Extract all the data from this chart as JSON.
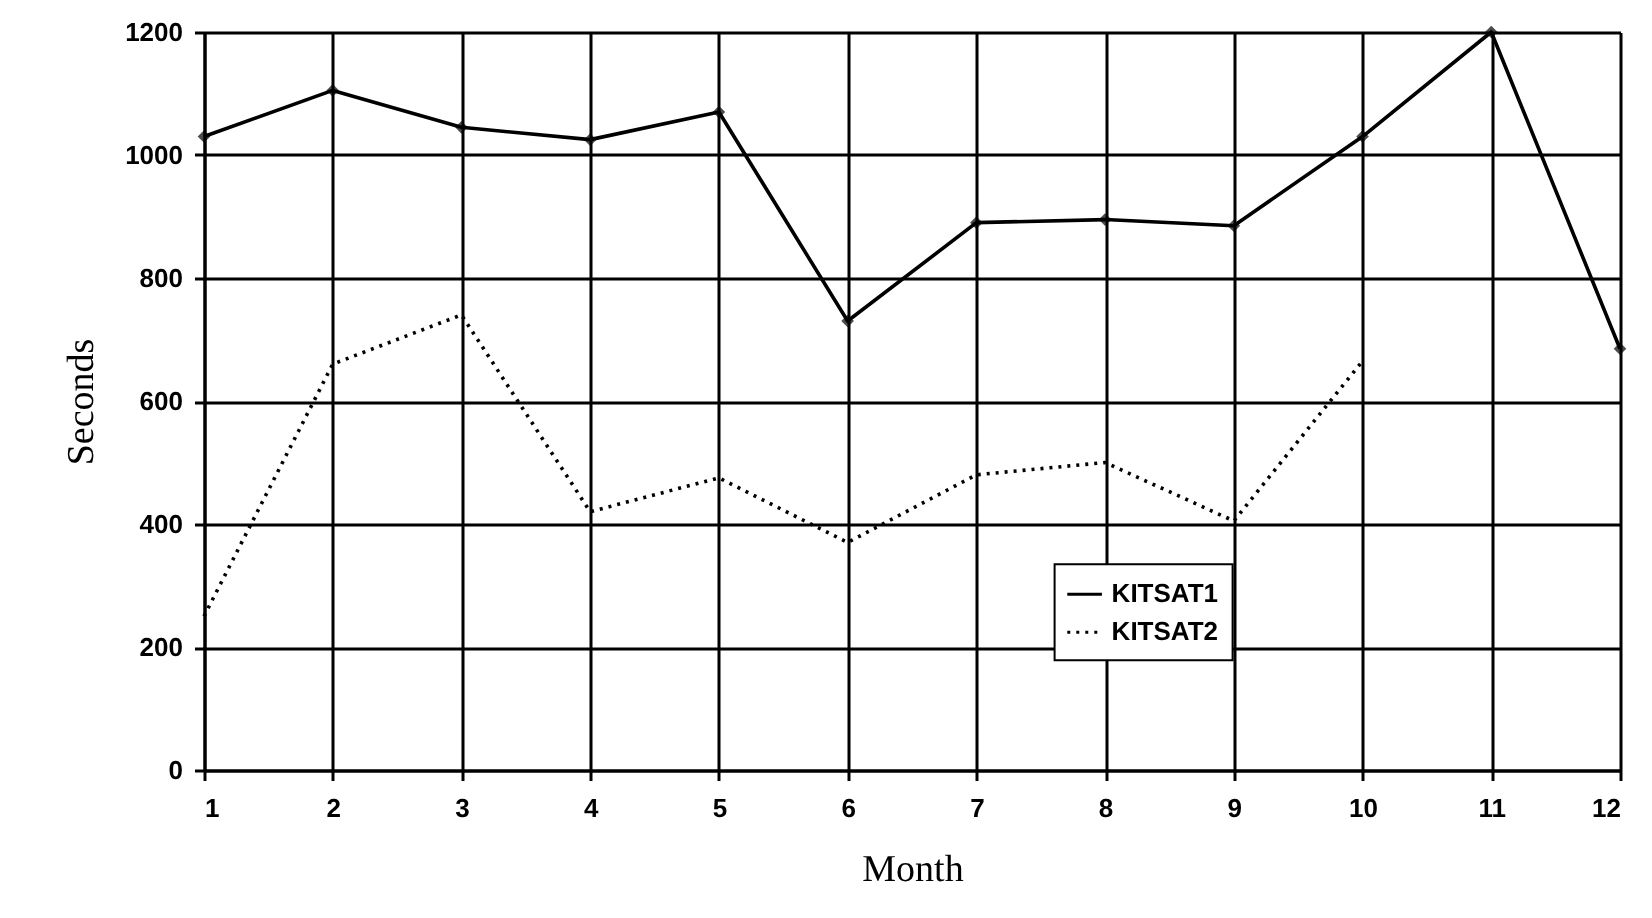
{
  "chart_data": {
    "type": "line",
    "xlabel": "Month",
    "ylabel": "Seconds",
    "x": [
      1,
      2,
      3,
      4,
      5,
      6,
      7,
      8,
      9,
      10,
      11,
      12
    ],
    "series": [
      {
        "name": "KITSAT1",
        "color": "#000000",
        "marker": "diamond",
        "line_style": "solid",
        "values": [
          1030,
          1105,
          1045,
          1025,
          1070,
          730,
          890,
          895,
          885,
          1030,
          1200,
          685
        ]
      },
      {
        "name": "KITSAT2",
        "color": "#000000",
        "marker": "none",
        "line_style": "dotted",
        "values": [
          250,
          660,
          740,
          420,
          475,
          370,
          480,
          500,
          405,
          665,
          null,
          null
        ]
      }
    ],
    "xlim": [
      1,
      12
    ],
    "xticks": [
      1,
      2,
      3,
      4,
      5,
      6,
      7,
      8,
      9,
      10,
      11,
      12
    ],
    "ylim": [
      0,
      1200
    ],
    "yticks": [
      0,
      200,
      400,
      600,
      800,
      1000,
      1200
    ],
    "grid": true,
    "legend": "bottom"
  }
}
